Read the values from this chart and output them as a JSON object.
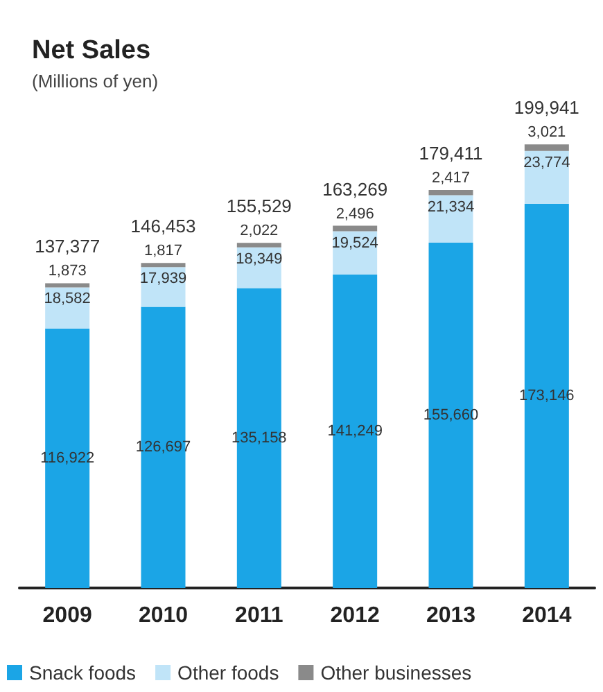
{
  "chart_data": {
    "type": "bar",
    "title": "Net Sales",
    "subtitle": "(Millions of yen)",
    "stacked": true,
    "legend": "bottom",
    "grid": false,
    "categories": [
      "2009",
      "2010",
      "2011",
      "2012",
      "2013",
      "2014"
    ],
    "series": [
      {
        "name": "Snack foods",
        "color": "#1ba5e6",
        "values": [
          116922,
          126697,
          135158,
          141249,
          155660,
          173146
        ],
        "value_labels": [
          "116,922",
          "126,697",
          "135,158",
          "141,249",
          "155,660",
          "173,146"
        ]
      },
      {
        "name": "Other foods",
        "color": "#c0e4f8",
        "values": [
          18582,
          17939,
          18349,
          19524,
          21334,
          23774
        ],
        "value_labels": [
          "18,582",
          "17,939",
          "18,349",
          "19,524",
          "21,334",
          "23,774"
        ]
      },
      {
        "name": "Other businesses",
        "color": "#8a8a8a",
        "values": [
          1873,
          1817,
          2022,
          2496,
          2417,
          3021
        ],
        "value_labels": [
          "1,873",
          "1,817",
          "2,022",
          "2,496",
          "2,417",
          "3,021"
        ]
      }
    ],
    "totals": [
      "137,377",
      "146,453",
      "155,529",
      "163,269",
      "179,411",
      "199,941"
    ]
  }
}
